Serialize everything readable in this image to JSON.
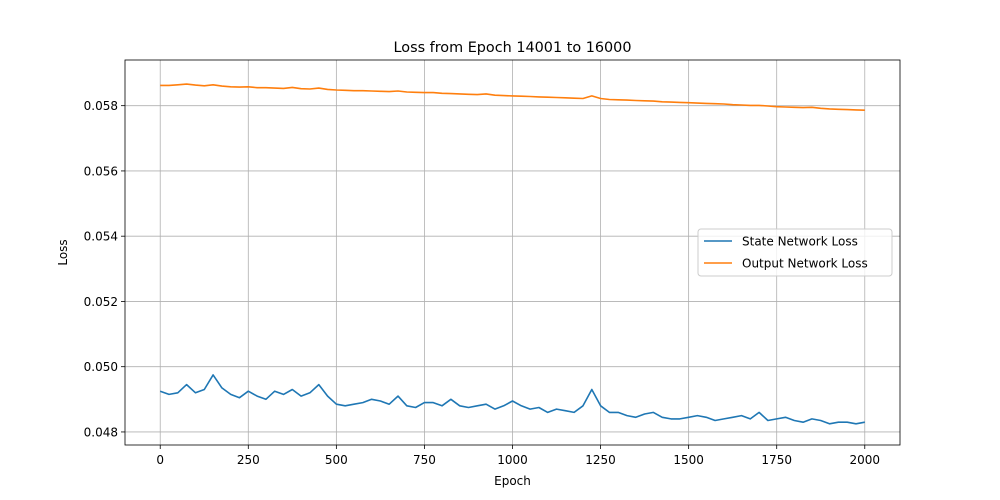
{
  "chart_data": {
    "type": "line",
    "title": "Loss from Epoch 14001 to 16000",
    "xlabel": "Epoch",
    "ylabel": "Loss",
    "xlim": [
      -100,
      2100
    ],
    "ylim": [
      0.0476,
      0.0594
    ],
    "xticks": [
      0,
      250,
      500,
      750,
      1000,
      1250,
      1500,
      1750,
      2000
    ],
    "xtick_labels": [
      "0",
      "250",
      "500",
      "750",
      "1000",
      "1250",
      "1500",
      "1750",
      "2000"
    ],
    "yticks": [
      0.048,
      0.05,
      0.052,
      0.054,
      0.056,
      0.058
    ],
    "ytick_labels": [
      "0.048",
      "0.050",
      "0.052",
      "0.054",
      "0.056",
      "0.058"
    ],
    "grid": true,
    "legend_position": "center-right",
    "series": [
      {
        "name": "State Network Loss",
        "color": "#1f77b4",
        "x": [
          0,
          25,
          50,
          75,
          100,
          125,
          150,
          175,
          200,
          225,
          250,
          275,
          300,
          325,
          350,
          375,
          400,
          425,
          450,
          475,
          500,
          525,
          550,
          575,
          600,
          625,
          650,
          675,
          700,
          725,
          750,
          775,
          800,
          825,
          850,
          875,
          900,
          925,
          950,
          975,
          1000,
          1025,
          1050,
          1075,
          1100,
          1125,
          1150,
          1175,
          1200,
          1225,
          1250,
          1275,
          1300,
          1325,
          1350,
          1375,
          1400,
          1425,
          1450,
          1475,
          1500,
          1525,
          1550,
          1575,
          1600,
          1625,
          1650,
          1675,
          1700,
          1725,
          1750,
          1775,
          1800,
          1825,
          1850,
          1875,
          1900,
          1925,
          1950,
          1975,
          2000
        ],
        "y": [
          0.04925,
          0.04915,
          0.0492,
          0.04945,
          0.0492,
          0.0493,
          0.04975,
          0.04935,
          0.04915,
          0.04905,
          0.04925,
          0.0491,
          0.049,
          0.04925,
          0.04915,
          0.0493,
          0.0491,
          0.0492,
          0.04945,
          0.0491,
          0.04885,
          0.0488,
          0.04885,
          0.0489,
          0.049,
          0.04895,
          0.04885,
          0.0491,
          0.0488,
          0.04875,
          0.0489,
          0.0489,
          0.0488,
          0.049,
          0.0488,
          0.04875,
          0.0488,
          0.04885,
          0.0487,
          0.0488,
          0.04895,
          0.0488,
          0.0487,
          0.04875,
          0.0486,
          0.0487,
          0.04865,
          0.0486,
          0.0488,
          0.0493,
          0.0488,
          0.0486,
          0.0486,
          0.0485,
          0.04845,
          0.04855,
          0.0486,
          0.04845,
          0.0484,
          0.0484,
          0.04845,
          0.0485,
          0.04845,
          0.04835,
          0.0484,
          0.04845,
          0.0485,
          0.0484,
          0.0486,
          0.04835,
          0.0484,
          0.04845,
          0.04835,
          0.0483,
          0.0484,
          0.04835,
          0.04825,
          0.0483,
          0.0483,
          0.04825,
          0.0483
        ]
      },
      {
        "name": "Output Network Loss",
        "color": "#ff7f0e",
        "x": [
          0,
          25,
          50,
          75,
          100,
          125,
          150,
          175,
          200,
          225,
          250,
          275,
          300,
          325,
          350,
          375,
          400,
          425,
          450,
          475,
          500,
          525,
          550,
          575,
          600,
          625,
          650,
          675,
          700,
          725,
          750,
          775,
          800,
          825,
          850,
          875,
          900,
          925,
          950,
          975,
          1000,
          1025,
          1050,
          1075,
          1100,
          1125,
          1150,
          1175,
          1200,
          1225,
          1250,
          1275,
          1300,
          1325,
          1350,
          1375,
          1400,
          1425,
          1450,
          1475,
          1500,
          1525,
          1550,
          1575,
          1600,
          1625,
          1650,
          1675,
          1700,
          1725,
          1750,
          1775,
          1800,
          1825,
          1850,
          1875,
          1900,
          1925,
          1950,
          1975,
          2000
        ],
        "y": [
          0.05862,
          0.05862,
          0.05864,
          0.05866,
          0.05863,
          0.05861,
          0.05864,
          0.0586,
          0.05858,
          0.05857,
          0.05858,
          0.05855,
          0.05855,
          0.05854,
          0.05853,
          0.05856,
          0.05852,
          0.05851,
          0.05854,
          0.0585,
          0.05848,
          0.05847,
          0.05846,
          0.05846,
          0.05845,
          0.05844,
          0.05843,
          0.05845,
          0.05842,
          0.05841,
          0.0584,
          0.0584,
          0.05838,
          0.05837,
          0.05836,
          0.05835,
          0.05834,
          0.05836,
          0.05832,
          0.05831,
          0.0583,
          0.05829,
          0.05828,
          0.05827,
          0.05826,
          0.05825,
          0.05824,
          0.05823,
          0.05822,
          0.0583,
          0.05822,
          0.05819,
          0.05818,
          0.05817,
          0.05816,
          0.05815,
          0.05814,
          0.05812,
          0.05811,
          0.0581,
          0.05809,
          0.05808,
          0.05807,
          0.05806,
          0.05805,
          0.05803,
          0.05802,
          0.05801,
          0.05801,
          0.05799,
          0.05797,
          0.05796,
          0.05795,
          0.05794,
          0.05795,
          0.05792,
          0.0579,
          0.05789,
          0.05788,
          0.05787,
          0.05786
        ]
      }
    ]
  }
}
